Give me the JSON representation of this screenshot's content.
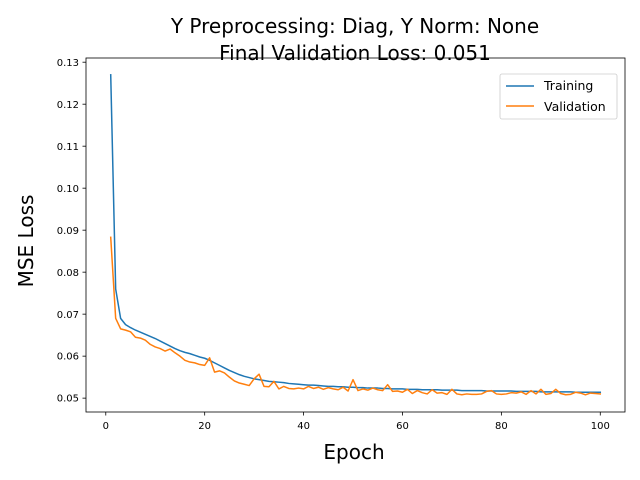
{
  "chart_data": {
    "type": "line",
    "title_line1": "Y Preprocessing: Diag, Y Norm: None",
    "title_line2": "Final Validation Loss: 0.051",
    "xlabel": "Epoch",
    "ylabel": "MSE Loss",
    "xlim": [
      -4,
      105
    ],
    "ylim": [
      0.0467,
      0.131
    ],
    "xticks": [
      0,
      20,
      40,
      60,
      80,
      100
    ],
    "yticks": [
      0.05,
      0.06,
      0.07,
      0.08,
      0.09,
      0.1,
      0.11,
      0.12,
      0.13
    ],
    "ytick_labels": [
      "0.05",
      "0.06",
      "0.07",
      "0.08",
      "0.09",
      "0.10",
      "0.11",
      "0.12",
      "0.13"
    ],
    "grid": false,
    "legend_position": "top-right",
    "colors": {
      "Training": "#1f77b4",
      "Validation": "#ff7f0e"
    },
    "series": [
      {
        "name": "Training",
        "x": [
          1,
          2,
          3,
          4,
          5,
          6,
          7,
          8,
          9,
          10,
          11,
          12,
          13,
          14,
          15,
          16,
          17,
          18,
          19,
          20,
          21,
          22,
          23,
          24,
          25,
          26,
          27,
          28,
          29,
          30,
          31,
          32,
          33,
          34,
          35,
          36,
          37,
          38,
          39,
          40,
          41,
          42,
          43,
          44,
          45,
          46,
          47,
          48,
          49,
          50,
          51,
          52,
          53,
          54,
          55,
          56,
          57,
          58,
          59,
          60,
          61,
          62,
          63,
          64,
          65,
          66,
          67,
          68,
          69,
          70,
          71,
          72,
          73,
          74,
          75,
          76,
          77,
          78,
          79,
          80,
          81,
          82,
          83,
          84,
          85,
          86,
          87,
          88,
          89,
          90,
          91,
          92,
          93,
          94,
          95,
          96,
          97,
          98,
          99,
          100
        ],
        "values": [
          0.127,
          0.076,
          0.069,
          0.0675,
          0.0668,
          0.0662,
          0.0657,
          0.0652,
          0.0647,
          0.0642,
          0.0636,
          0.063,
          0.0624,
          0.0618,
          0.0613,
          0.0609,
          0.0606,
          0.0602,
          0.0598,
          0.0595,
          0.059,
          0.0584,
          0.0578,
          0.0572,
          0.0566,
          0.0561,
          0.0556,
          0.0552,
          0.0549,
          0.0546,
          0.0544,
          0.0542,
          0.054,
          0.0539,
          0.0538,
          0.0537,
          0.0535,
          0.0534,
          0.0533,
          0.0532,
          0.0531,
          0.0531,
          0.053,
          0.0529,
          0.0528,
          0.0528,
          0.0527,
          0.0527,
          0.0526,
          0.0526,
          0.0525,
          0.0525,
          0.0524,
          0.0524,
          0.0524,
          0.0523,
          0.0523,
          0.0522,
          0.0522,
          0.0522,
          0.0521,
          0.0521,
          0.0521,
          0.052,
          0.052,
          0.052,
          0.052,
          0.0519,
          0.0519,
          0.0519,
          0.0519,
          0.0518,
          0.0518,
          0.0518,
          0.0518,
          0.0518,
          0.0517,
          0.0517,
          0.0517,
          0.0517,
          0.0517,
          0.0517,
          0.0516,
          0.0516,
          0.0516,
          0.0516,
          0.0516,
          0.0515,
          0.0515,
          0.0515,
          0.0515,
          0.0515,
          0.0515,
          0.0515,
          0.0514,
          0.0514,
          0.0514,
          0.0514,
          0.0514,
          0.0514
        ]
      },
      {
        "name": "Validation",
        "x": [
          1,
          2,
          3,
          4,
          5,
          6,
          7,
          8,
          9,
          10,
          11,
          12,
          13,
          14,
          15,
          16,
          17,
          18,
          19,
          20,
          21,
          22,
          23,
          24,
          25,
          26,
          27,
          28,
          29,
          30,
          31,
          32,
          33,
          34,
          35,
          36,
          37,
          38,
          39,
          40,
          41,
          42,
          43,
          44,
          45,
          46,
          47,
          48,
          49,
          50,
          51,
          52,
          53,
          54,
          55,
          56,
          57,
          58,
          59,
          60,
          61,
          62,
          63,
          64,
          65,
          66,
          67,
          68,
          69,
          70,
          71,
          72,
          73,
          74,
          75,
          76,
          77,
          78,
          79,
          80,
          81,
          82,
          83,
          84,
          85,
          86,
          87,
          88,
          89,
          90,
          91,
          92,
          93,
          94,
          95,
          96,
          97,
          98,
          99,
          100
        ],
        "values": [
          0.0883,
          0.069,
          0.0665,
          0.0662,
          0.0658,
          0.0645,
          0.0643,
          0.0638,
          0.0628,
          0.0622,
          0.0618,
          0.0612,
          0.0617,
          0.0608,
          0.06,
          0.059,
          0.0586,
          0.0584,
          0.058,
          0.0578,
          0.0596,
          0.0562,
          0.0565,
          0.056,
          0.055,
          0.0541,
          0.0536,
          0.0533,
          0.053,
          0.0546,
          0.0557,
          0.0528,
          0.0527,
          0.054,
          0.0522,
          0.0528,
          0.0523,
          0.0522,
          0.0524,
          0.0522,
          0.0528,
          0.0523,
          0.0526,
          0.0521,
          0.0525,
          0.0522,
          0.052,
          0.0526,
          0.0517,
          0.0544,
          0.0518,
          0.0522,
          0.0519,
          0.0524,
          0.052,
          0.0518,
          0.0532,
          0.0516,
          0.0517,
          0.0514,
          0.0521,
          0.0511,
          0.0518,
          0.0513,
          0.051,
          0.052,
          0.0512,
          0.0513,
          0.0509,
          0.0521,
          0.051,
          0.0508,
          0.051,
          0.0509,
          0.0509,
          0.051,
          0.0516,
          0.0518,
          0.051,
          0.0509,
          0.051,
          0.0513,
          0.0512,
          0.0515,
          0.0509,
          0.0518,
          0.051,
          0.0521,
          0.0509,
          0.0511,
          0.0521,
          0.0511,
          0.0508,
          0.0509,
          0.0514,
          0.0512,
          0.0508,
          0.0512,
          0.0511,
          0.051
        ]
      }
    ]
  }
}
